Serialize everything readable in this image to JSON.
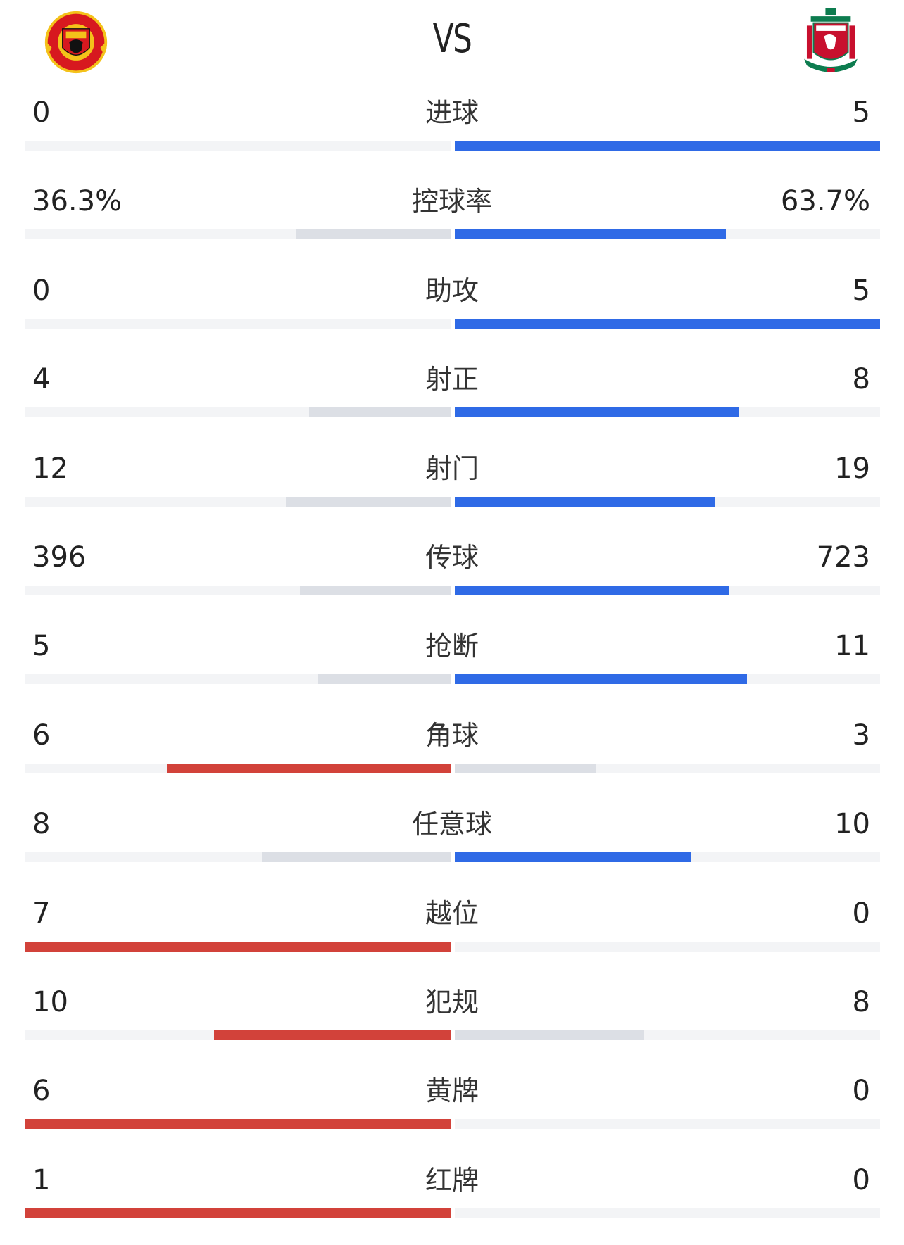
{
  "header": {
    "vs_label": "VS",
    "home_crest_icon": "manchester-united-crest-icon",
    "away_crest_icon": "liverpool-crest-icon"
  },
  "colors": {
    "away_lead": "#2f6ae6",
    "home_lead": "#d2423a",
    "trailing": "#dcdfe5",
    "track": "#f3f4f6"
  },
  "stats": [
    {
      "label": "进球",
      "home": "0",
      "away": "5",
      "home_share": 0,
      "away_share": 1
    },
    {
      "label": "控球率",
      "home": "36.3%",
      "away": "63.7%",
      "home_share": 0.363,
      "away_share": 0.637
    },
    {
      "label": "助攻",
      "home": "0",
      "away": "5",
      "home_share": 0,
      "away_share": 1
    },
    {
      "label": "射正",
      "home": "4",
      "away": "8",
      "home_share": 0.3333,
      "away_share": 0.6667
    },
    {
      "label": "射门",
      "home": "12",
      "away": "19",
      "home_share": 0.3871,
      "away_share": 0.6129
    },
    {
      "label": "传球",
      "home": "396",
      "away": "723",
      "home_share": 0.3539,
      "away_share": 0.6461
    },
    {
      "label": "抢断",
      "home": "5",
      "away": "11",
      "home_share": 0.3125,
      "away_share": 0.6875
    },
    {
      "label": "角球",
      "home": "6",
      "away": "3",
      "home_share": 0.6667,
      "away_share": 0.3333
    },
    {
      "label": "任意球",
      "home": "8",
      "away": "10",
      "home_share": 0.4444,
      "away_share": 0.5556
    },
    {
      "label": "越位",
      "home": "7",
      "away": "0",
      "home_share": 1,
      "away_share": 0
    },
    {
      "label": "犯规",
      "home": "10",
      "away": "8",
      "home_share": 0.5556,
      "away_share": 0.4444
    },
    {
      "label": "黄牌",
      "home": "6",
      "away": "0",
      "home_share": 1,
      "away_share": 0
    },
    {
      "label": "红牌",
      "home": "1",
      "away": "0",
      "home_share": 1,
      "away_share": 0
    }
  ]
}
